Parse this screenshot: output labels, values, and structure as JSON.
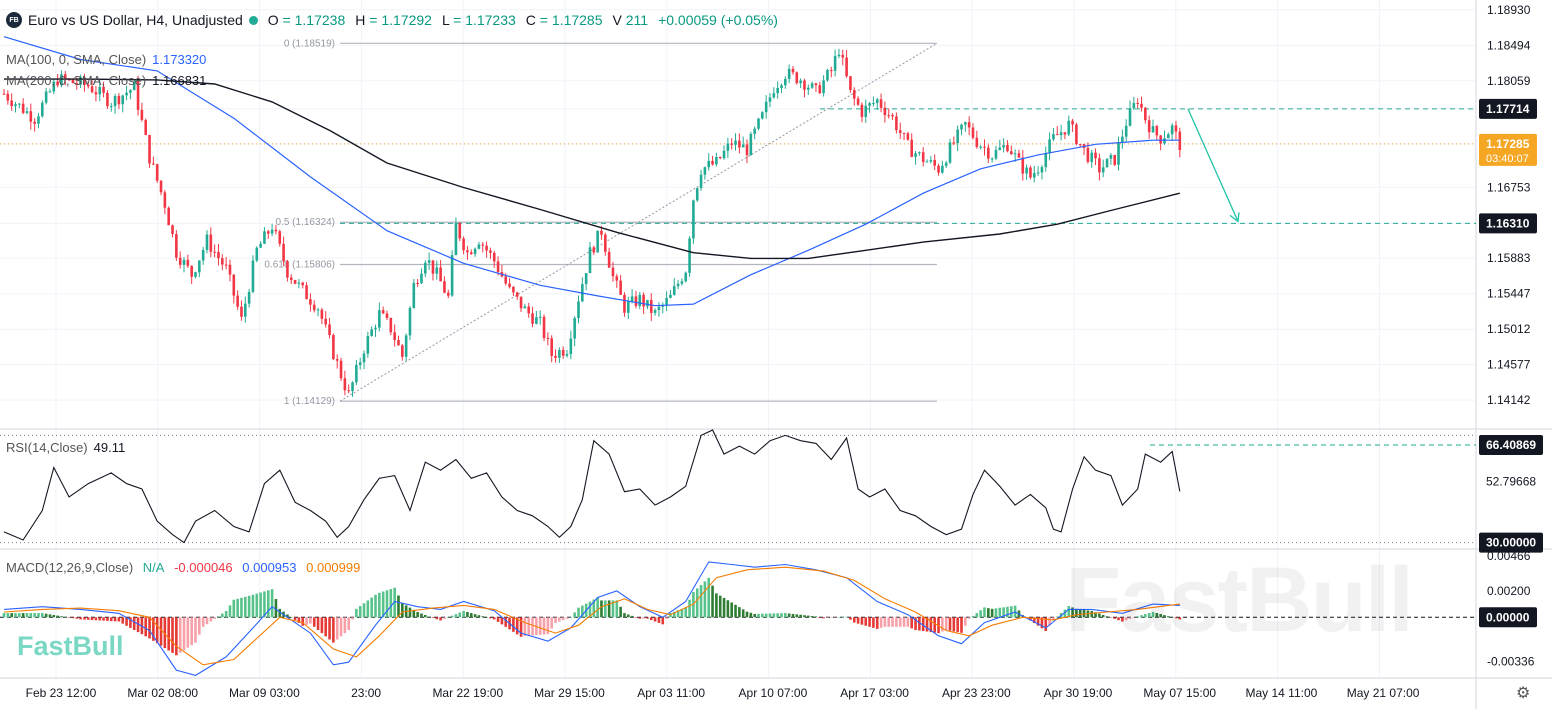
{
  "header": {
    "symbol_badge": "FB",
    "title": "Euro vs US Dollar, H4, Unadjusted",
    "open_label": "O",
    "open": "1.17238",
    "high_label": "H",
    "high": "1.17292",
    "low_label": "L",
    "low": "1.17233",
    "close_label": "C",
    "close": "1.17285",
    "volume_label": "V",
    "volume": "211",
    "change": "+0.00059 (+0.05%)"
  },
  "indicators": {
    "ma100_label": "MA(100, 0, SMA, Close)",
    "ma100_value": "1.173320",
    "ma200_label": "MA(200, 0, SMA, Close)",
    "ma200_value": "1.166831",
    "rsi_label": "RSI(14,Close)",
    "rsi_value": "49.11",
    "macd_label": "MACD(12,26,9,Close)",
    "macd_na": "N/A",
    "macd_hist": "-0.000046",
    "macd_line": "0.000953",
    "macd_signal": "0.000999"
  },
  "brand": "FastBull",
  "watermark": "FastBull",
  "colors": {
    "up": "#22ab94",
    "down": "#f23645",
    "ma100": "#2962ff",
    "ma200": "#131722",
    "macd": "#2962ff",
    "signal": "#f57c00",
    "accent": "#f5a623"
  },
  "chart_data": [
    {
      "type": "candlestick",
      "panel": "price",
      "ylim": [
        1.138,
        1.1905
      ],
      "y_ticks": [
        "1.18930",
        "1.18494",
        "1.18059",
        "1.17714",
        "1.17285",
        "1.16753",
        "1.16310",
        "1.15883",
        "1.15447",
        "1.15012",
        "1.14577",
        "1.14142"
      ],
      "x_ticks": [
        "Feb 23 12:00",
        "Mar 02 08:00",
        "Mar 09 03:00",
        "23:00",
        "Mar 22 19:00",
        "Mar 29 15:00",
        "Apr 03 11:00",
        "Apr 10 07:00",
        "Apr 17 03:00",
        "Apr 23 23:00",
        "Apr 30 19:00",
        "May 07 15:00",
        "May 14 11:00",
        "May 21 07:00"
      ],
      "close_path": [
        [
          0,
          1.179
        ],
        [
          8,
          1.176
        ],
        [
          14,
          1.1808
        ],
        [
          22,
          1.18
        ],
        [
          28,
          1.178
        ],
        [
          34,
          1.1798
        ],
        [
          38,
          1.1712
        ],
        [
          42,
          1.1655
        ],
        [
          45,
          1.1596
        ],
        [
          49,
          1.1568
        ],
        [
          53,
          1.161
        ],
        [
          58,
          1.1575
        ],
        [
          62,
          1.1512
        ],
        [
          66,
          1.1598
        ],
        [
          70,
          1.1628
        ],
        [
          74,
          1.1572
        ],
        [
          78,
          1.1548
        ],
        [
          82,
          1.1528
        ],
        [
          86,
          1.1472
        ],
        [
          88,
          1.1445
        ],
        [
          90,
          1.142
        ],
        [
          94,
          1.1478
        ],
        [
          98,
          1.152
        ],
        [
          101,
          1.1502
        ],
        [
          104,
          1.1468
        ],
        [
          107,
          1.1555
        ],
        [
          110,
          1.159
        ],
        [
          113,
          1.1568
        ],
        [
          116,
          1.154
        ],
        [
          118,
          1.1628
        ],
        [
          121,
          1.1595
        ],
        [
          124,
          1.1612
        ],
        [
          128,
          1.1585
        ],
        [
          132,
          1.1548
        ],
        [
          136,
          1.1525
        ],
        [
          140,
          1.1508
        ],
        [
          143,
          1.147
        ],
        [
          147,
          1.1478
        ],
        [
          150,
          1.154
        ],
        [
          153,
          1.1595
        ],
        [
          156,
          1.1622
        ],
        [
          159,
          1.1565
        ],
        [
          162,
          1.1528
        ],
        [
          166,
          1.1538
        ],
        [
          170,
          1.152
        ],
        [
          174,
          1.154
        ],
        [
          178,
          1.1575
        ],
        [
          180,
          1.1662
        ],
        [
          182,
          1.1698
        ],
        [
          186,
          1.1705
        ],
        [
          190,
          1.173
        ],
        [
          194,
          1.1722
        ],
        [
          198,
          1.1762
        ],
        [
          201,
          1.1798
        ],
        [
          204,
          1.1815
        ],
        [
          208,
          1.1808
        ],
        [
          212,
          1.1792
        ],
        [
          216,
          1.1818
        ],
        [
          218,
          1.1845
        ],
        [
          221,
          1.179
        ],
        [
          224,
          1.1768
        ],
        [
          228,
          1.1782
        ],
        [
          232,
          1.176
        ],
        [
          236,
          1.1725
        ],
        [
          240,
          1.171
        ],
        [
          244,
          1.1698
        ],
        [
          248,
          1.173
        ],
        [
          251,
          1.1752
        ],
        [
          254,
          1.1732
        ],
        [
          258,
          1.1715
        ],
        [
          262,
          1.1728
        ],
        [
          265,
          1.1705
        ],
        [
          268,
          1.1688
        ],
        [
          270,
          1.17
        ],
        [
          274,
          1.1735
        ],
        [
          278,
          1.1752
        ],
        [
          282,
          1.172
        ],
        [
          286,
          1.1698
        ],
        [
          290,
          1.171
        ],
        [
          293,
          1.1755
        ],
        [
          296,
          1.1784
        ],
        [
          298,
          1.176
        ],
        [
          300,
          1.1743
        ],
        [
          302,
          1.1736
        ],
        [
          305,
          1.1748
        ],
        [
          307,
          1.1728
        ]
      ],
      "overlays": {
        "fib_levels": [
          {
            "label": "0 (1.18519)",
            "value": 1.18519
          },
          {
            "label": "0.5 (1.16324)",
            "value": 1.16324
          },
          {
            "label": "0.618 (1.15806)",
            "value": 1.15806
          },
          {
            "label": "1 (1.14129)",
            "value": 1.14129
          }
        ],
        "horizontal_levels": [
          1.17714,
          1.1631
        ],
        "last_price": "1.17285",
        "countdown": "03:40:07",
        "resistance_label": "1.17714",
        "target_label": "1.16310"
      },
      "ma100_path": [
        [
          0,
          1.186
        ],
        [
          20,
          1.1832
        ],
        [
          40,
          1.1818
        ],
        [
          60,
          1.176
        ],
        [
          80,
          1.1688
        ],
        [
          100,
          1.1622
        ],
        [
          120,
          1.1582
        ],
        [
          140,
          1.1555
        ],
        [
          155,
          1.1542
        ],
        [
          170,
          1.153
        ],
        [
          180,
          1.1532
        ],
        [
          195,
          1.1568
        ],
        [
          210,
          1.1598
        ],
        [
          225,
          1.163
        ],
        [
          240,
          1.1668
        ],
        [
          255,
          1.1698
        ],
        [
          270,
          1.1715
        ],
        [
          285,
          1.1728
        ],
        [
          300,
          1.1733
        ],
        [
          307,
          1.1733
        ]
      ],
      "ma200_path": [
        [
          0,
          1.1808
        ],
        [
          20,
          1.1808
        ],
        [
          40,
          1.1807
        ],
        [
          55,
          1.1802
        ],
        [
          70,
          1.178
        ],
        [
          85,
          1.1745
        ],
        [
          100,
          1.1705
        ],
        [
          120,
          1.1675
        ],
        [
          140,
          1.1648
        ],
        [
          160,
          1.162
        ],
        [
          180,
          1.1595
        ],
        [
          195,
          1.1588
        ],
        [
          210,
          1.1588
        ],
        [
          225,
          1.1598
        ],
        [
          240,
          1.1608
        ],
        [
          260,
          1.1618
        ],
        [
          275,
          1.163
        ],
        [
          290,
          1.1648
        ],
        [
          307,
          1.1668
        ]
      ]
    },
    {
      "type": "line",
      "panel": "rsi",
      "ylim": [
        28,
        72
      ],
      "y_ticks": [
        "66.40869",
        "52.79668",
        "30.00000"
      ],
      "bands": [
        70,
        30
      ],
      "last_value": 49.11,
      "path": [
        [
          0,
          34
        ],
        [
          5,
          31
        ],
        [
          10,
          42
        ],
        [
          13,
          58
        ],
        [
          17,
          47
        ],
        [
          22,
          52
        ],
        [
          28,
          56
        ],
        [
          32,
          52
        ],
        [
          36,
          50
        ],
        [
          40,
          38
        ],
        [
          44,
          33
        ],
        [
          47,
          30
        ],
        [
          50,
          38
        ],
        [
          55,
          42
        ],
        [
          60,
          36
        ],
        [
          64,
          34
        ],
        [
          68,
          52
        ],
        [
          72,
          57
        ],
        [
          76,
          45
        ],
        [
          80,
          42
        ],
        [
          84,
          38
        ],
        [
          87,
          32
        ],
        [
          90,
          36
        ],
        [
          94,
          46
        ],
        [
          98,
          54
        ],
        [
          102,
          55
        ],
        [
          106,
          42
        ],
        [
          110,
          60
        ],
        [
          114,
          57
        ],
        [
          118,
          61
        ],
        [
          122,
          54
        ],
        [
          126,
          56
        ],
        [
          130,
          47
        ],
        [
          134,
          42
        ],
        [
          138,
          40
        ],
        [
          142,
          36
        ],
        [
          145,
          32
        ],
        [
          148,
          36
        ],
        [
          151,
          46
        ],
        [
          154,
          68
        ],
        [
          158,
          63
        ],
        [
          162,
          49
        ],
        [
          166,
          50
        ],
        [
          170,
          44
        ],
        [
          174,
          47
        ],
        [
          178,
          51
        ],
        [
          182,
          70
        ],
        [
          185,
          72
        ],
        [
          188,
          63
        ],
        [
          192,
          66
        ],
        [
          196,
          63
        ],
        [
          200,
          68
        ],
        [
          204,
          70
        ],
        [
          208,
          68
        ],
        [
          212,
          67
        ],
        [
          216,
          61
        ],
        [
          220,
          69
        ],
        [
          223,
          50
        ],
        [
          226,
          47
        ],
        [
          230,
          50
        ],
        [
          234,
          42
        ],
        [
          238,
          40
        ],
        [
          242,
          36
        ],
        [
          246,
          33
        ],
        [
          250,
          35
        ],
        [
          253,
          48
        ],
        [
          256,
          57
        ],
        [
          260,
          51
        ],
        [
          264,
          44
        ],
        [
          268,
          48
        ],
        [
          272,
          43
        ],
        [
          274,
          35
        ],
        [
          276,
          34
        ],
        [
          279,
          50
        ],
        [
          282,
          62
        ],
        [
          285,
          57
        ],
        [
          289,
          55
        ],
        [
          292,
          44
        ],
        [
          296,
          50
        ],
        [
          298,
          63
        ],
        [
          302,
          60
        ],
        [
          305,
          64
        ],
        [
          307,
          49.11
        ]
      ]
    },
    {
      "type": "bar",
      "panel": "macd",
      "ylim": [
        -0.0046,
        0.0051
      ],
      "y_ticks": [
        "0.00466",
        "0.00200",
        "0.00000",
        "-0.00336"
      ],
      "last_value": "0.00000",
      "macd_path": [
        [
          0,
          0.0006
        ],
        [
          10,
          0.0008
        ],
        [
          20,
          0.0006
        ],
        [
          30,
          0.0003
        ],
        [
          38,
          -0.001
        ],
        [
          45,
          -0.004
        ],
        [
          50,
          -0.0044
        ],
        [
          58,
          -0.003
        ],
        [
          65,
          -0.0008
        ],
        [
          70,
          0.0008
        ],
        [
          74,
          0.0
        ],
        [
          80,
          -0.0012
        ],
        [
          86,
          -0.0036
        ],
        [
          90,
          -0.0034
        ],
        [
          97,
          -0.0006
        ],
        [
          102,
          0.0012
        ],
        [
          108,
          0.0008
        ],
        [
          114,
          0.0006
        ],
        [
          120,
          0.0012
        ],
        [
          128,
          0.0005
        ],
        [
          135,
          -0.0012
        ],
        [
          142,
          -0.0018
        ],
        [
          148,
          -0.0008
        ],
        [
          155,
          0.0015
        ],
        [
          160,
          0.002
        ],
        [
          166,
          0.0008
        ],
        [
          172,
          0.0
        ],
        [
          178,
          0.0012
        ],
        [
          184,
          0.0042
        ],
        [
          190,
          0.004
        ],
        [
          196,
          0.0038
        ],
        [
          204,
          0.004
        ],
        [
          212,
          0.0036
        ],
        [
          220,
          0.003
        ],
        [
          228,
          0.0012
        ],
        [
          236,
          0.0002
        ],
        [
          244,
          -0.0014
        ],
        [
          250,
          -0.002
        ],
        [
          256,
          -0.0004
        ],
        [
          264,
          0.0004
        ],
        [
          272,
          -0.0008
        ],
        [
          278,
          0.0006
        ],
        [
          284,
          0.0006
        ],
        [
          292,
          0.0003
        ],
        [
          300,
          0.001
        ],
        [
          307,
          0.0009
        ]
      ],
      "signal_path": [
        [
          0,
          0.0004
        ],
        [
          10,
          0.0006
        ],
        [
          20,
          0.0007
        ],
        [
          30,
          0.0005
        ],
        [
          38,
          0.0
        ],
        [
          45,
          -0.0022
        ],
        [
          52,
          -0.0036
        ],
        [
          60,
          -0.0032
        ],
        [
          66,
          -0.0016
        ],
        [
          72,
          0.0
        ],
        [
          78,
          -0.0004
        ],
        [
          86,
          -0.0024
        ],
        [
          92,
          -0.003
        ],
        [
          98,
          -0.0014
        ],
        [
          104,
          0.0004
        ],
        [
          112,
          0.0007
        ],
        [
          120,
          0.0009
        ],
        [
          128,
          0.0006
        ],
        [
          136,
          -0.0004
        ],
        [
          144,
          -0.0012
        ],
        [
          150,
          -0.0006
        ],
        [
          156,
          0.0008
        ],
        [
          162,
          0.0014
        ],
        [
          168,
          0.0006
        ],
        [
          174,
          0.0002
        ],
        [
          180,
          0.001
        ],
        [
          186,
          0.003
        ],
        [
          194,
          0.0036
        ],
        [
          204,
          0.0038
        ],
        [
          214,
          0.0035
        ],
        [
          222,
          0.0028
        ],
        [
          230,
          0.0014
        ],
        [
          238,
          0.0004
        ],
        [
          246,
          -0.001
        ],
        [
          252,
          -0.0014
        ],
        [
          258,
          -0.0006
        ],
        [
          266,
          0.0
        ],
        [
          274,
          -0.0002
        ],
        [
          280,
          0.0002
        ],
        [
          288,
          0.0004
        ],
        [
          296,
          0.0006
        ],
        [
          307,
          0.001
        ]
      ]
    }
  ]
}
